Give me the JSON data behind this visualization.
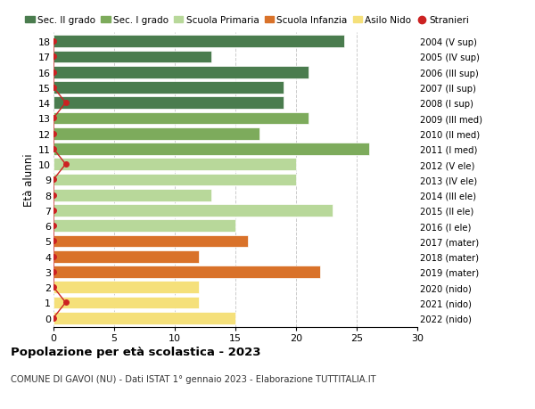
{
  "ages": [
    18,
    17,
    16,
    15,
    14,
    13,
    12,
    11,
    10,
    9,
    8,
    7,
    6,
    5,
    4,
    3,
    2,
    1,
    0
  ],
  "values": [
    24,
    13,
    21,
    19,
    19,
    21,
    17,
    26,
    20,
    20,
    13,
    23,
    15,
    16,
    12,
    22,
    12,
    12,
    15
  ],
  "stranieri": [
    0,
    0,
    0,
    0,
    1,
    0,
    0,
    0,
    1,
    0,
    0,
    0,
    0,
    0,
    0,
    0,
    0,
    1,
    0
  ],
  "right_labels": [
    "2004 (V sup)",
    "2005 (IV sup)",
    "2006 (III sup)",
    "2007 (II sup)",
    "2008 (I sup)",
    "2009 (III med)",
    "2010 (II med)",
    "2011 (I med)",
    "2012 (V ele)",
    "2013 (IV ele)",
    "2014 (III ele)",
    "2015 (II ele)",
    "2016 (I ele)",
    "2017 (mater)",
    "2018 (mater)",
    "2019 (mater)",
    "2020 (nido)",
    "2021 (nido)",
    "2022 (nido)"
  ],
  "bar_colors": [
    "#4a7c4e",
    "#4a7c4e",
    "#4a7c4e",
    "#4a7c4e",
    "#4a7c4e",
    "#7dab5c",
    "#7dab5c",
    "#7dab5c",
    "#b8d89a",
    "#b8d89a",
    "#b8d89a",
    "#b8d89a",
    "#b8d89a",
    "#d9722a",
    "#d9722a",
    "#d9722a",
    "#f5e07a",
    "#f5e07a",
    "#f5e07a"
  ],
  "legend_labels": [
    "Sec. II grado",
    "Sec. I grado",
    "Scuola Primaria",
    "Scuola Infanzia",
    "Asilo Nido",
    "Stranieri"
  ],
  "legend_colors": [
    "#4a7c4e",
    "#7dab5c",
    "#b8d89a",
    "#d9722a",
    "#f5e07a",
    "#cc2222"
  ],
  "stranieri_color": "#cc2222",
  "stranieri_line_color": "#cc2222",
  "ylabel_left": "Età alunni",
  "xlim": [
    0,
    30
  ],
  "xticks": [
    0,
    5,
    10,
    15,
    20,
    25,
    30
  ],
  "title": "Popolazione per età scolastica - 2023",
  "subtitle": "COMUNE DI GAVOI (NU) - Dati ISTAT 1° gennaio 2023 - Elaborazione TUTTITALIA.IT",
  "grid_color": "#cccccc",
  "bar_height": 0.8,
  "background_color": "#ffffff",
  "plot_bg_color": "#ffffff"
}
